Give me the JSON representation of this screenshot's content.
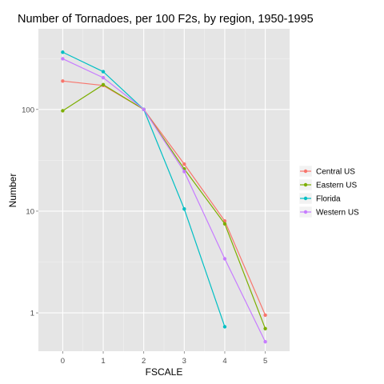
{
  "chart_data": {
    "type": "line",
    "title": "Number of Tornadoes, per 100 F2s, by region, 1950-1995",
    "xlabel": "FSCALE",
    "ylabel": "Number",
    "x": [
      0,
      1,
      2,
      3,
      4,
      5
    ],
    "x_tick_labels": [
      "0",
      "1",
      "2",
      "3",
      "4",
      "5"
    ],
    "xlim": [
      -0.6,
      5.6
    ],
    "y_scale": "log10",
    "ylim": [
      0.42,
      620
    ],
    "y_ticks": [
      1,
      10,
      100
    ],
    "y_tick_labels": [
      "1",
      "10",
      "100"
    ],
    "grid": true,
    "legend_position": "right",
    "panel_background": "#e5e5e5",
    "series": [
      {
        "name": "Central US",
        "color": "#f8766d",
        "values": [
          190,
          172,
          100,
          29,
          8,
          0.95
        ]
      },
      {
        "name": "Eastern US",
        "color": "#7cae00",
        "values": [
          97,
          175,
          100,
          26,
          7.5,
          0.7
        ]
      },
      {
        "name": "Florida",
        "color": "#00bfc4",
        "values": [
          365,
          235,
          100,
          10.5,
          0.73,
          null
        ]
      },
      {
        "name": "Western US",
        "color": "#c77cff",
        "values": [
          315,
          205,
          100,
          24.5,
          3.4,
          0.52
        ]
      }
    ]
  }
}
